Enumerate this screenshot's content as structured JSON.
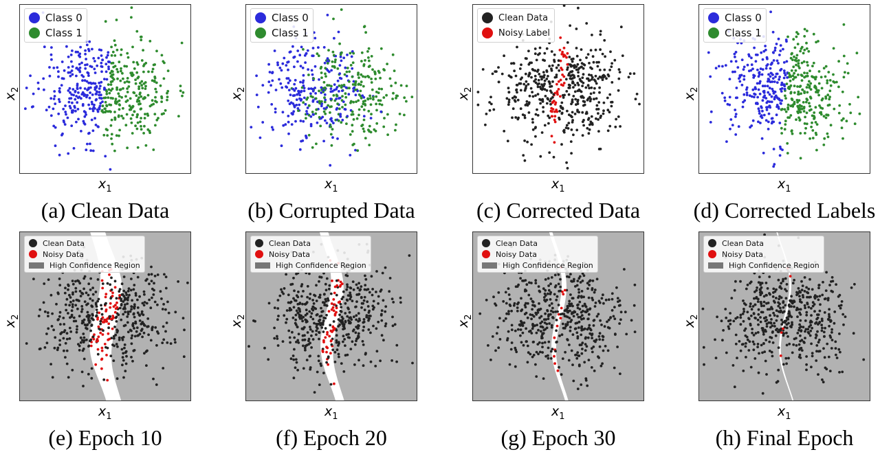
{
  "chart_data": [
    {
      "type": "scatter",
      "variant": "clean",
      "caption": "(a) Clean Data",
      "xlabel": "x1",
      "ylabel": "x2",
      "legend": [
        {
          "label": "Class 0",
          "color": "#2b2bdb"
        },
        {
          "label": "Class 1",
          "color": "#2e8b2e"
        }
      ],
      "legend_placement": "top-left",
      "grid": false,
      "seed": 11
    },
    {
      "type": "scatter",
      "variant": "corrupted",
      "caption": "(b) Corrupted Data",
      "xlabel": "x1",
      "ylabel": "x2",
      "legend": [
        {
          "label": "Class 0",
          "color": "#2b2bdb"
        },
        {
          "label": "Class 1",
          "color": "#2e8b2e"
        }
      ],
      "legend_placement": "top-left",
      "grid": false,
      "seed": 11
    },
    {
      "type": "scatter",
      "variant": "detected",
      "caption": "(c) Corrected Data",
      "xlabel": "x1",
      "ylabel": "x2",
      "legend": [
        {
          "label": "Clean Data",
          "color": "#222222"
        },
        {
          "label": "Noisy Label",
          "color": "#e01010"
        }
      ],
      "legend_placement": "top-left",
      "grid": false,
      "seed": 23
    },
    {
      "type": "scatter",
      "variant": "clean",
      "caption": "(d) Corrected Labels",
      "xlabel": "x1",
      "ylabel": "x2",
      "legend": [
        {
          "label": "Class 0",
          "color": "#2b2bdb"
        },
        {
          "label": "Class 1",
          "color": "#2e8b2e"
        }
      ],
      "legend_placement": "top-left",
      "grid": false,
      "seed": 31
    },
    {
      "type": "scatter",
      "variant": "epoch",
      "caption": "(e) Epoch 10",
      "xlabel": "x1",
      "ylabel": "x2",
      "legend": [
        {
          "label": "Clean Data",
          "color": "#222222"
        },
        {
          "label": "Noisy Data",
          "color": "#e01010"
        },
        {
          "label": "High Confidence Region",
          "color": "#777777"
        }
      ],
      "legend_placement": "top-left",
      "grid": false,
      "band_halfwidth": 0.42,
      "seed": 41
    },
    {
      "type": "scatter",
      "variant": "epoch",
      "caption": "(f) Epoch 20",
      "xlabel": "x1",
      "ylabel": "x2",
      "legend": [
        {
          "label": "Clean Data",
          "color": "#222222"
        },
        {
          "label": "Noisy Data",
          "color": "#e01010"
        },
        {
          "label": "High Confidence Region",
          "color": "#777777"
        }
      ],
      "legend_placement": "top-left",
      "grid": false,
      "band_halfwidth": 0.24,
      "seed": 53
    },
    {
      "type": "scatter",
      "variant": "epoch",
      "caption": "(g) Epoch 30",
      "xlabel": "x1",
      "ylabel": "x2",
      "legend": [
        {
          "label": "Clean Data",
          "color": "#222222"
        },
        {
          "label": "Noisy Data",
          "color": "#e01010"
        },
        {
          "label": "High Confidence Region",
          "color": "#777777"
        }
      ],
      "legend_placement": "top-left",
      "grid": false,
      "band_halfwidth": 0.09,
      "seed": 67
    },
    {
      "type": "scatter",
      "variant": "epoch",
      "caption": "(h) Final Epoch",
      "xlabel": "x1",
      "ylabel": "x2",
      "legend": [
        {
          "label": "Clean Data",
          "color": "#222222"
        },
        {
          "label": "Noisy Data",
          "color": "#e01010"
        },
        {
          "label": "High Confidence Region",
          "color": "#777777"
        }
      ],
      "legend_placement": "top-left",
      "grid": false,
      "band_halfwidth": 0.035,
      "seed": 79
    }
  ]
}
